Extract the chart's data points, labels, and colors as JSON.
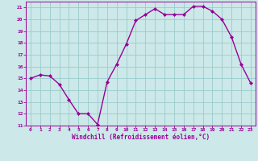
{
  "x": [
    0,
    1,
    2,
    3,
    4,
    5,
    6,
    7,
    8,
    9,
    10,
    11,
    12,
    13,
    14,
    15,
    16,
    17,
    18,
    19,
    20,
    21,
    22,
    23
  ],
  "y": [
    15.0,
    15.3,
    15.2,
    14.5,
    13.2,
    12.0,
    12.0,
    11.1,
    14.7,
    16.2,
    17.9,
    19.9,
    20.4,
    20.9,
    20.4,
    20.4,
    20.4,
    21.1,
    21.1,
    20.7,
    20.0,
    18.5,
    16.2,
    14.6
  ],
  "line_color": "#990099",
  "marker": "D",
  "marker_size": 2.0,
  "bg_color": "#cce8e8",
  "grid_color": "#99cccc",
  "xlabel": "Windchill (Refroidissement éolien,°C)",
  "xlabel_color": "#990099",
  "tick_color": "#990099",
  "xlim": [
    -0.5,
    23.5
  ],
  "ylim": [
    11,
    21.5
  ],
  "yticks": [
    11,
    12,
    13,
    14,
    15,
    16,
    17,
    18,
    19,
    20,
    21
  ],
  "xticks": [
    0,
    1,
    2,
    3,
    4,
    5,
    6,
    7,
    8,
    9,
    10,
    11,
    12,
    13,
    14,
    15,
    16,
    17,
    18,
    19,
    20,
    21,
    22,
    23
  ],
  "linewidth": 1.0
}
